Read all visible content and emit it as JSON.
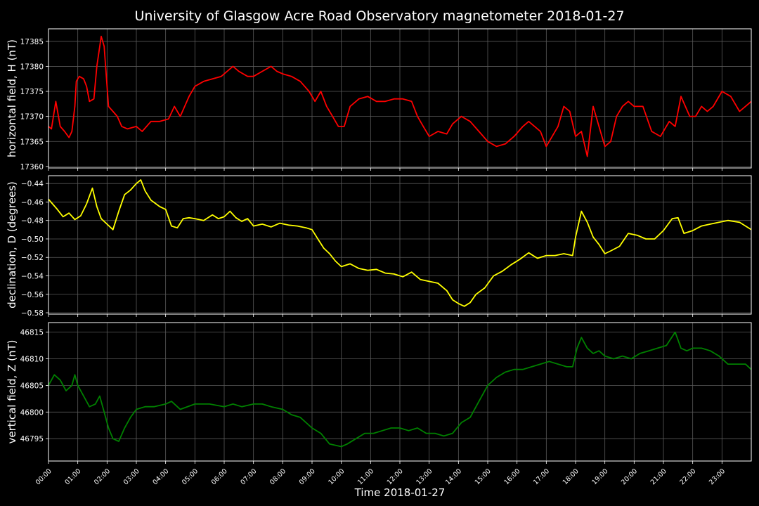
{
  "chart_data": [
    {
      "type": "line",
      "title": "University of Glasgow Acre Road Observatory magnetometer 2018-01-27",
      "ylabel": "horizontal field, H (nT)",
      "xlabel": "",
      "ylim": [
        17359.7,
        17387.5
      ],
      "yticks": [
        17360,
        17365,
        17370,
        17375,
        17380,
        17385
      ],
      "ytick_labels": [
        "17360",
        "17365",
        "17370",
        "17375",
        "17380",
        "17385"
      ],
      "grid": true,
      "series": [
        {
          "color": "#ff0000",
          "x": [
            0,
            0.1,
            0.25,
            0.4,
            0.55,
            0.7,
            0.8,
            0.9,
            0.95,
            1.05,
            1.2,
            1.3,
            1.4,
            1.55,
            1.65,
            1.8,
            1.9,
            2.05,
            2.2,
            2.35,
            2.5,
            2.7,
            3.0,
            3.2,
            3.5,
            3.8,
            4.1,
            4.3,
            4.5,
            4.8,
            5.0,
            5.3,
            5.6,
            5.9,
            6.1,
            6.3,
            6.5,
            6.8,
            7.0,
            7.3,
            7.6,
            7.8,
            8.0,
            8.3,
            8.6,
            8.9,
            9.1,
            9.3,
            9.5,
            9.7,
            9.9,
            10.1,
            10.3,
            10.6,
            10.9,
            11.2,
            11.5,
            11.8,
            12.1,
            12.4,
            12.6,
            12.8,
            13.0,
            13.3,
            13.6,
            13.8,
            14.1,
            14.4,
            14.7,
            15.0,
            15.3,
            15.6,
            15.9,
            16.2,
            16.4,
            16.6,
            16.8,
            17.0,
            17.2,
            17.4,
            17.6,
            17.8,
            18.0,
            18.2,
            18.4,
            18.6,
            18.8,
            19.0,
            19.2,
            19.4,
            19.6,
            19.8,
            20.0,
            20.3,
            20.6,
            20.9,
            21.2,
            21.4,
            21.6,
            21.9,
            22.1,
            22.3,
            22.5,
            22.7,
            23.0,
            23.3,
            23.6,
            23.8,
            24.0
          ],
          "values": [
            17368,
            17367.5,
            17373,
            17368,
            17367,
            17365.8,
            17367,
            17372,
            17377,
            17378,
            17377.5,
            17376,
            17373,
            17373.5,
            17380,
            17386,
            17384,
            17372,
            17371,
            17370,
            17368,
            17367.5,
            17368,
            17367,
            17369,
            17369,
            17369.5,
            17372,
            17370,
            17374,
            17376,
            17377,
            17377.5,
            17378,
            17379,
            17380,
            17379,
            17378,
            17378,
            17379,
            17380,
            17379,
            17378.5,
            17378,
            17377,
            17375,
            17373,
            17375,
            17372,
            17370,
            17368,
            17368,
            17372,
            17373.5,
            17374,
            17373,
            17373,
            17373.5,
            17373.5,
            17373,
            17370,
            17368,
            17366,
            17367,
            17366.5,
            17368.5,
            17370,
            17369,
            17367,
            17365,
            17364,
            17364.5,
            17366,
            17368,
            17369,
            17368,
            17367,
            17364,
            17366,
            17368,
            17372,
            17371,
            17366,
            17367,
            17362,
            17372,
            17368,
            17364,
            17365,
            17370,
            17372,
            17373,
            17372,
            17372,
            17367,
            17366,
            17369,
            17368,
            17374,
            17370,
            17370,
            17372,
            17371,
            17372,
            17375,
            17374,
            17371,
            17372,
            17373
          ]
        }
      ]
    },
    {
      "type": "line",
      "ylabel": "declination, D (degrees)",
      "xlabel": "",
      "ylim": [
        -0.5815,
        -0.4315
      ],
      "yticks": [
        -0.58,
        -0.56,
        -0.54,
        -0.52,
        -0.5,
        -0.48,
        -0.46,
        -0.44
      ],
      "ytick_labels": [
        "−0.58",
        "−0.56",
        "−0.54",
        "−0.52",
        "−0.50",
        "−0.48",
        "−0.46",
        "−0.44"
      ],
      "grid": true,
      "series": [
        {
          "color": "#ffff00",
          "x": [
            0,
            0.3,
            0.5,
            0.7,
            0.9,
            1.1,
            1.3,
            1.5,
            1.65,
            1.8,
            2.0,
            2.2,
            2.4,
            2.6,
            2.8,
            3.0,
            3.15,
            3.3,
            3.5,
            3.8,
            4.0,
            4.2,
            4.4,
            4.6,
            4.8,
            5.0,
            5.3,
            5.6,
            5.8,
            6.0,
            6.2,
            6.4,
            6.6,
            6.8,
            7.0,
            7.3,
            7.6,
            7.9,
            8.2,
            8.5,
            8.8,
            9.0,
            9.2,
            9.4,
            9.6,
            9.8,
            10.0,
            10.3,
            10.6,
            10.9,
            11.2,
            11.5,
            11.8,
            12.1,
            12.4,
            12.7,
            13.0,
            13.3,
            13.6,
            13.8,
            14.0,
            14.2,
            14.4,
            14.6,
            14.9,
            15.2,
            15.5,
            15.8,
            16.1,
            16.4,
            16.7,
            17.0,
            17.3,
            17.6,
            17.9,
            18.0,
            18.2,
            18.4,
            18.6,
            18.8,
            19.0,
            19.2,
            19.5,
            19.8,
            20.1,
            20.4,
            20.7,
            21.0,
            21.3,
            21.5,
            21.7,
            22.0,
            22.3,
            22.6,
            22.9,
            23.2,
            23.6,
            24.0
          ],
          "values": [
            -0.457,
            -0.468,
            -0.476,
            -0.472,
            -0.479,
            -0.475,
            -0.462,
            -0.445,
            -0.465,
            -0.478,
            -0.484,
            -0.49,
            -0.47,
            -0.452,
            -0.447,
            -0.44,
            -0.436,
            -0.448,
            -0.458,
            -0.465,
            -0.468,
            -0.486,
            -0.488,
            -0.478,
            -0.477,
            -0.478,
            -0.48,
            -0.474,
            -0.478,
            -0.476,
            -0.47,
            -0.477,
            -0.481,
            -0.478,
            -0.486,
            -0.484,
            -0.487,
            -0.483,
            -0.485,
            -0.486,
            -0.488,
            -0.49,
            -0.5,
            -0.51,
            -0.516,
            -0.524,
            -0.53,
            -0.527,
            -0.532,
            -0.534,
            -0.533,
            -0.537,
            -0.538,
            -0.541,
            -0.536,
            -0.544,
            -0.546,
            -0.548,
            -0.556,
            -0.566,
            -0.57,
            -0.573,
            -0.569,
            -0.56,
            -0.553,
            -0.54,
            -0.535,
            -0.528,
            -0.522,
            -0.515,
            -0.521,
            -0.518,
            -0.518,
            -0.516,
            -0.518,
            -0.498,
            -0.47,
            -0.482,
            -0.498,
            -0.506,
            -0.516,
            -0.513,
            -0.508,
            -0.494,
            -0.496,
            -0.5,
            -0.5,
            -0.491,
            -0.478,
            -0.477,
            -0.494,
            -0.491,
            -0.486,
            -0.484,
            -0.482,
            -0.48,
            -0.482,
            -0.49
          ]
        }
      ]
    },
    {
      "type": "line",
      "ylabel": "vertical field, Z (nT)",
      "xlabel": "Time 2018-01-27",
      "ylim": [
        46790.8,
        46816.8
      ],
      "yticks": [
        46795,
        46800,
        46805,
        46810,
        46815
      ],
      "ytick_labels": [
        "46795",
        "46800",
        "46805",
        "46810",
        "46815"
      ],
      "x_tick_labels": [
        "00:00",
        "01:00",
        "02:00",
        "03:00",
        "04:00",
        "05:00",
        "06:00",
        "07:00",
        "08:00",
        "09:00",
        "10:00",
        "11:00",
        "12:00",
        "13:00",
        "14:00",
        "15:00",
        "16:00",
        "17:00",
        "18:00",
        "19:00",
        "20:00",
        "21:00",
        "22:00",
        "23:00"
      ],
      "x_range_hours": [
        0,
        24
      ],
      "grid": true,
      "series": [
        {
          "color": "#008000",
          "x": [
            0,
            0.2,
            0.4,
            0.6,
            0.8,
            0.9,
            1.0,
            1.2,
            1.4,
            1.6,
            1.75,
            1.9,
            2.05,
            2.2,
            2.4,
            2.6,
            2.8,
            3.0,
            3.3,
            3.6,
            4.0,
            4.2,
            4.5,
            5.0,
            5.5,
            6.0,
            6.3,
            6.6,
            7.0,
            7.3,
            7.6,
            8.0,
            8.3,
            8.6,
            9.0,
            9.3,
            9.6,
            10.0,
            10.2,
            10.5,
            10.8,
            11.1,
            11.4,
            11.7,
            12.0,
            12.3,
            12.6,
            12.9,
            13.2,
            13.5,
            13.8,
            14.1,
            14.4,
            14.7,
            15.0,
            15.3,
            15.6,
            15.9,
            16.2,
            16.5,
            16.8,
            17.1,
            17.4,
            17.7,
            17.9,
            18.05,
            18.2,
            18.4,
            18.6,
            18.8,
            19.0,
            19.3,
            19.6,
            19.9,
            20.2,
            20.5,
            20.8,
            21.1,
            21.4,
            21.6,
            21.8,
            22.0,
            22.3,
            22.6,
            22.9,
            23.2,
            23.5,
            23.8,
            24.0
          ],
          "values": [
            46805,
            46807,
            46806,
            46804,
            46805,
            46807,
            46805,
            46803,
            46801,
            46801.5,
            46803,
            46800,
            46797,
            46795,
            46794.5,
            46797,
            46799,
            46800.5,
            46801,
            46801,
            46801.5,
            46802,
            46800.5,
            46801.5,
            46801.5,
            46801,
            46801.5,
            46801,
            46801.5,
            46801.5,
            46801,
            46800.5,
            46799.5,
            46799,
            46797,
            46796,
            46794,
            46793.5,
            46794,
            46795,
            46796,
            46796,
            46796.5,
            46797,
            46797,
            46796.5,
            46797,
            46796,
            46796,
            46795.5,
            46796,
            46798,
            46799,
            46802,
            46805,
            46806.5,
            46807.5,
            46808,
            46808,
            46808.5,
            46809,
            46809.5,
            46809,
            46808.5,
            46808.5,
            46812,
            46814,
            46812,
            46811,
            46811.5,
            46810.5,
            46810,
            46810.5,
            46810,
            46811,
            46811.5,
            46812,
            46812.5,
            46815,
            46812,
            46811.5,
            46812,
            46812,
            46811.5,
            46810.5,
            46809,
            46809,
            46809,
            46808
          ]
        }
      ]
    }
  ]
}
